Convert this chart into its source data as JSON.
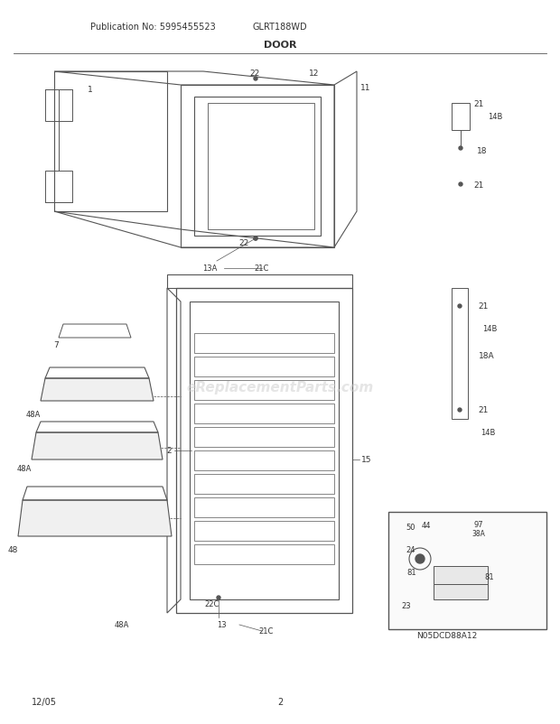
{
  "title": "DOOR",
  "pub_no": "Publication No: 5995455523",
  "model": "GLRT188WD",
  "date": "12/05",
  "page": "2",
  "diagram_code": "N05DCD88A12",
  "bg_color": "#ffffff",
  "line_color": "#555555",
  "text_color": "#333333",
  "figsize": [
    6.2,
    8.03
  ],
  "dpi": 100
}
